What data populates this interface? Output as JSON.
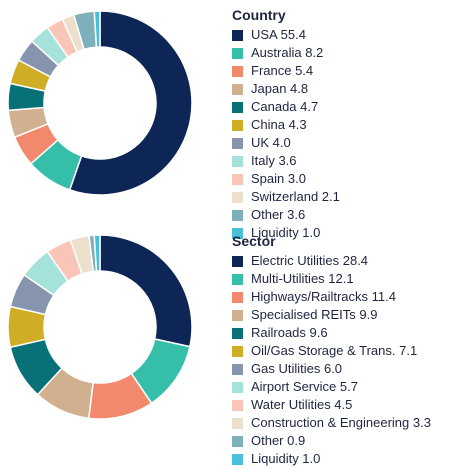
{
  "chart_data": [
    {
      "type": "pie",
      "title": "Country",
      "categories": [
        "USA",
        "Australia",
        "France",
        "Japan",
        "Canada",
        "China",
        "UK",
        "Italy",
        "Spain",
        "Switzerland",
        "Other",
        "Liquidity"
      ],
      "values": [
        55.4,
        8.2,
        5.4,
        4.8,
        4.7,
        4.3,
        4.0,
        3.6,
        3.0,
        2.1,
        3.6,
        1.0
      ],
      "value_labels": [
        "55.4",
        "8.2",
        "5.4",
        "4.8",
        "4.7",
        "4.3",
        "4.0",
        "3.6",
        "3.0",
        "2.1",
        "3.6",
        "1.0"
      ],
      "colors": [
        "#0d2656",
        "#35bfa8",
        "#f3896c",
        "#d1b08f",
        "#087178",
        "#cfae25",
        "#8694ad",
        "#a5e2da",
        "#f8c5b6",
        "#ece0cd",
        "#7eb0bb",
        "#49c0da"
      ],
      "legend": "right"
    },
    {
      "type": "pie",
      "title": "Sector",
      "categories": [
        "Electric Utilities",
        "Multi-Utilities",
        "Highways/Railtracks",
        "Specialised REITs",
        "Railroads",
        "Oil/Gas Storage & Trans.",
        "Gas Utilities",
        "Airport Service",
        "Water Utilities",
        "Construction & Engineering",
        "Other",
        "Liquidity"
      ],
      "values": [
        28.4,
        12.1,
        11.4,
        9.9,
        9.6,
        7.1,
        6.0,
        5.7,
        4.5,
        3.3,
        0.9,
        1.0
      ],
      "value_labels": [
        "28.4",
        "12.1",
        "11.4",
        "9.9",
        "9.6",
        "7.1",
        "6.0",
        "5.7",
        "4.5",
        "3.3",
        "0.9",
        "1.0"
      ],
      "colors": [
        "#0d2656",
        "#35bfa8",
        "#f3896c",
        "#d1b08f",
        "#087178",
        "#cfae25",
        "#8694ad",
        "#a5e2da",
        "#f8c5b6",
        "#ece0cd",
        "#7eb0bb",
        "#49c0da"
      ],
      "legend": "right"
    }
  ]
}
